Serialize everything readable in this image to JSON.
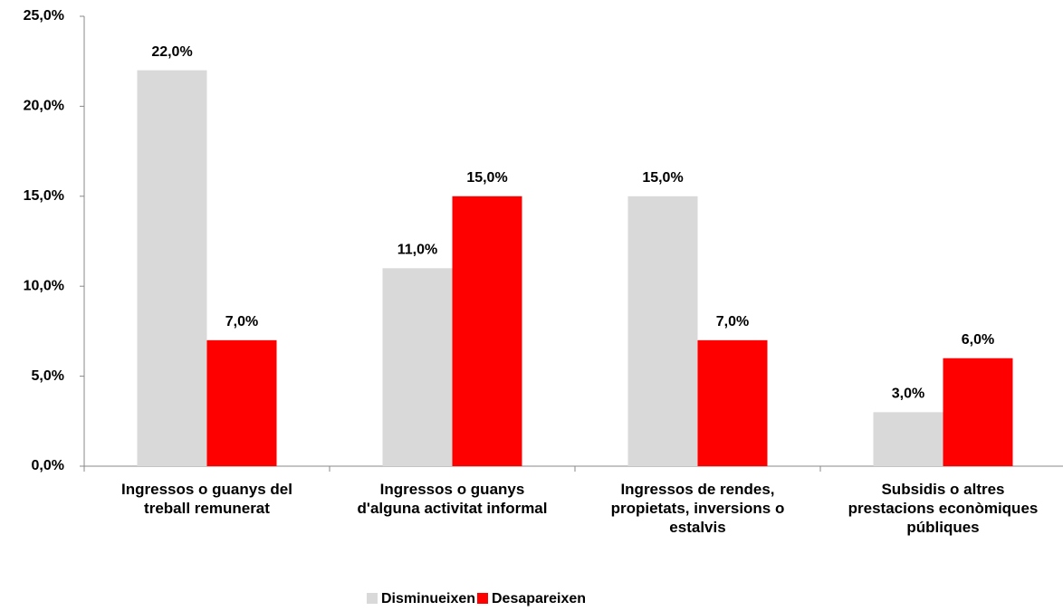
{
  "chart_data": {
    "type": "bar",
    "categories": [
      "Ingressos o guanys del treball remunerat",
      "Ingressos o guanys d'alguna activitat informal",
      "Ingressos de rendes, propietats, inversions o estalvis",
      "Subsidis o altres prestacions econòmiques públiques"
    ],
    "series": [
      {
        "name": "Disminueixen",
        "color": "#d9d9d9",
        "values": [
          22,
          11,
          15,
          3
        ],
        "value_labels": [
          "22,0%",
          "11,0%",
          "15,0%",
          "3,0%"
        ]
      },
      {
        "name": "Desapareixen",
        "color": "#ff0000",
        "values": [
          7,
          15,
          7,
          6
        ],
        "value_labels": [
          "7,0%",
          "15,0%",
          "7,0%",
          "6,0%"
        ]
      }
    ],
    "ylim": [
      0,
      25
    ],
    "yticks": [
      {
        "value": 0,
        "label": "0,0%"
      },
      {
        "value": 5,
        "label": "5,0%"
      },
      {
        "value": 10,
        "label": "10,0%"
      },
      {
        "value": 15,
        "label": "15,0%"
      },
      {
        "value": 20,
        "label": "20,0%"
      },
      {
        "value": 25,
        "label": "25,0%"
      }
    ],
    "legend": "bottom"
  }
}
